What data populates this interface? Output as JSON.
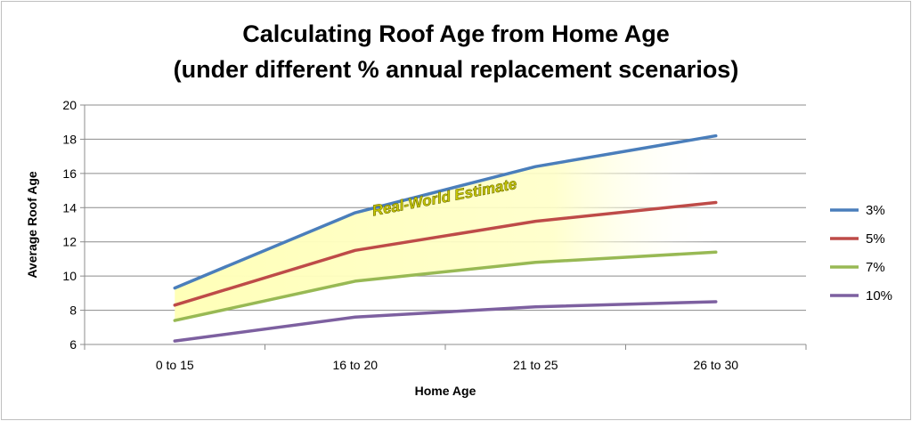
{
  "chart_data": {
    "type": "line",
    "title_line1": "Calculating Roof Age from Home Age",
    "title_line2": "(under different % annual replacement scenarios)",
    "xlabel": "Home Age",
    "ylabel": "Average Roof Age",
    "categories": [
      "0 to 15",
      "16 to 20",
      "21 to 25",
      "26 to 30"
    ],
    "ylim": [
      6,
      20
    ],
    "yticks": [
      6,
      8,
      10,
      12,
      14,
      16,
      18,
      20
    ],
    "grid": true,
    "legend_position": "right",
    "series": [
      {
        "name": "3%",
        "color": "#4a7ebb",
        "values": [
          9.3,
          13.7,
          16.4,
          18.2
        ]
      },
      {
        "name": "5%",
        "color": "#be4b48",
        "values": [
          8.3,
          11.5,
          13.2,
          14.3
        ]
      },
      {
        "name": "7%",
        "color": "#98b954",
        "values": [
          7.4,
          9.7,
          10.8,
          11.4
        ]
      },
      {
        "name": "10%",
        "color": "#7d60a0",
        "values": [
          6.2,
          7.6,
          8.2,
          8.5
        ]
      }
    ],
    "annotation": {
      "text": "Real-World Estimate",
      "fill_color": "#ffffc0",
      "band_upper_series": "3%",
      "band_lower_series": "7%"
    }
  }
}
